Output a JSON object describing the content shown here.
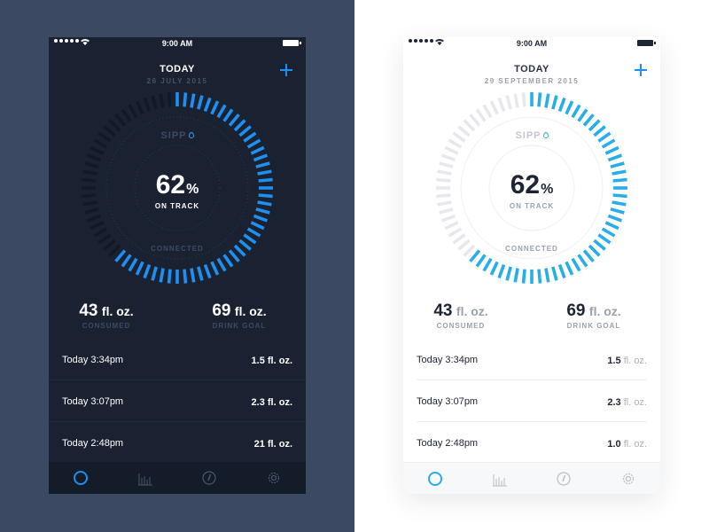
{
  "colors": {
    "accent": "#1f8ff0",
    "light_accent": "#27aeea",
    "dark_inactive_ticks": "#121826",
    "light_inactive_ticks": "#e6e8ec",
    "dark_bg": "#1a2232",
    "light_bg": "#ffffff"
  },
  "dark": {
    "status": {
      "time": "9:00 AM"
    },
    "header": {
      "title": "TODAY",
      "date": "26 JULY 2015"
    },
    "gauge": {
      "brand": "SIPP",
      "percent": "62",
      "percent_unit": "%",
      "fraction": 0.62,
      "label": "ON TRACK",
      "connection": "CONNECTED"
    },
    "stats": [
      {
        "value": "43",
        "unit": "fl. oz.",
        "label": "CONSUMED"
      },
      {
        "value": "69",
        "unit": "fl. oz.",
        "label": "DRINK GOAL"
      }
    ],
    "entries": [
      {
        "time": "Today 3:34pm",
        "amount": "1.5",
        "unit": "fl. oz."
      },
      {
        "time": "Today 3:07pm",
        "amount": "2.3",
        "unit": "fl. oz."
      },
      {
        "time": "Today 2:48pm",
        "amount": "21",
        "unit": "fl. oz."
      }
    ],
    "tabs": [
      {
        "icon": "circle-icon",
        "active": true
      },
      {
        "icon": "bar-chart-icon",
        "active": false
      },
      {
        "icon": "thermometer-icon",
        "active": false
      },
      {
        "icon": "gear-icon",
        "active": false
      }
    ]
  },
  "light": {
    "status": {
      "time": "9:00 AM"
    },
    "header": {
      "title": "TODAY",
      "date": "29 SEPTEMBER 2015"
    },
    "gauge": {
      "brand": "SIPP",
      "percent": "62",
      "percent_unit": "%",
      "fraction": 0.62,
      "label": "ON TRACK",
      "connection": "CONNECTED"
    },
    "stats": [
      {
        "value": "43",
        "unit": "fl. oz.",
        "label": "CONSUMED"
      },
      {
        "value": "69",
        "unit": "fl. oz.",
        "label": "DRINK GOAL"
      }
    ],
    "entries": [
      {
        "time": "Today 3:34pm",
        "amount": "1.5",
        "unit": "fl. oz."
      },
      {
        "time": "Today 3:07pm",
        "amount": "2.3",
        "unit": "fl. oz."
      },
      {
        "time": "Today 2:48pm",
        "amount": "1.0",
        "unit": "fl. oz."
      }
    ],
    "tabs": [
      {
        "icon": "circle-icon",
        "active": true
      },
      {
        "icon": "bar-chart-icon",
        "active": false
      },
      {
        "icon": "thermometer-icon",
        "active": false
      },
      {
        "icon": "gear-icon",
        "active": false
      }
    ]
  }
}
